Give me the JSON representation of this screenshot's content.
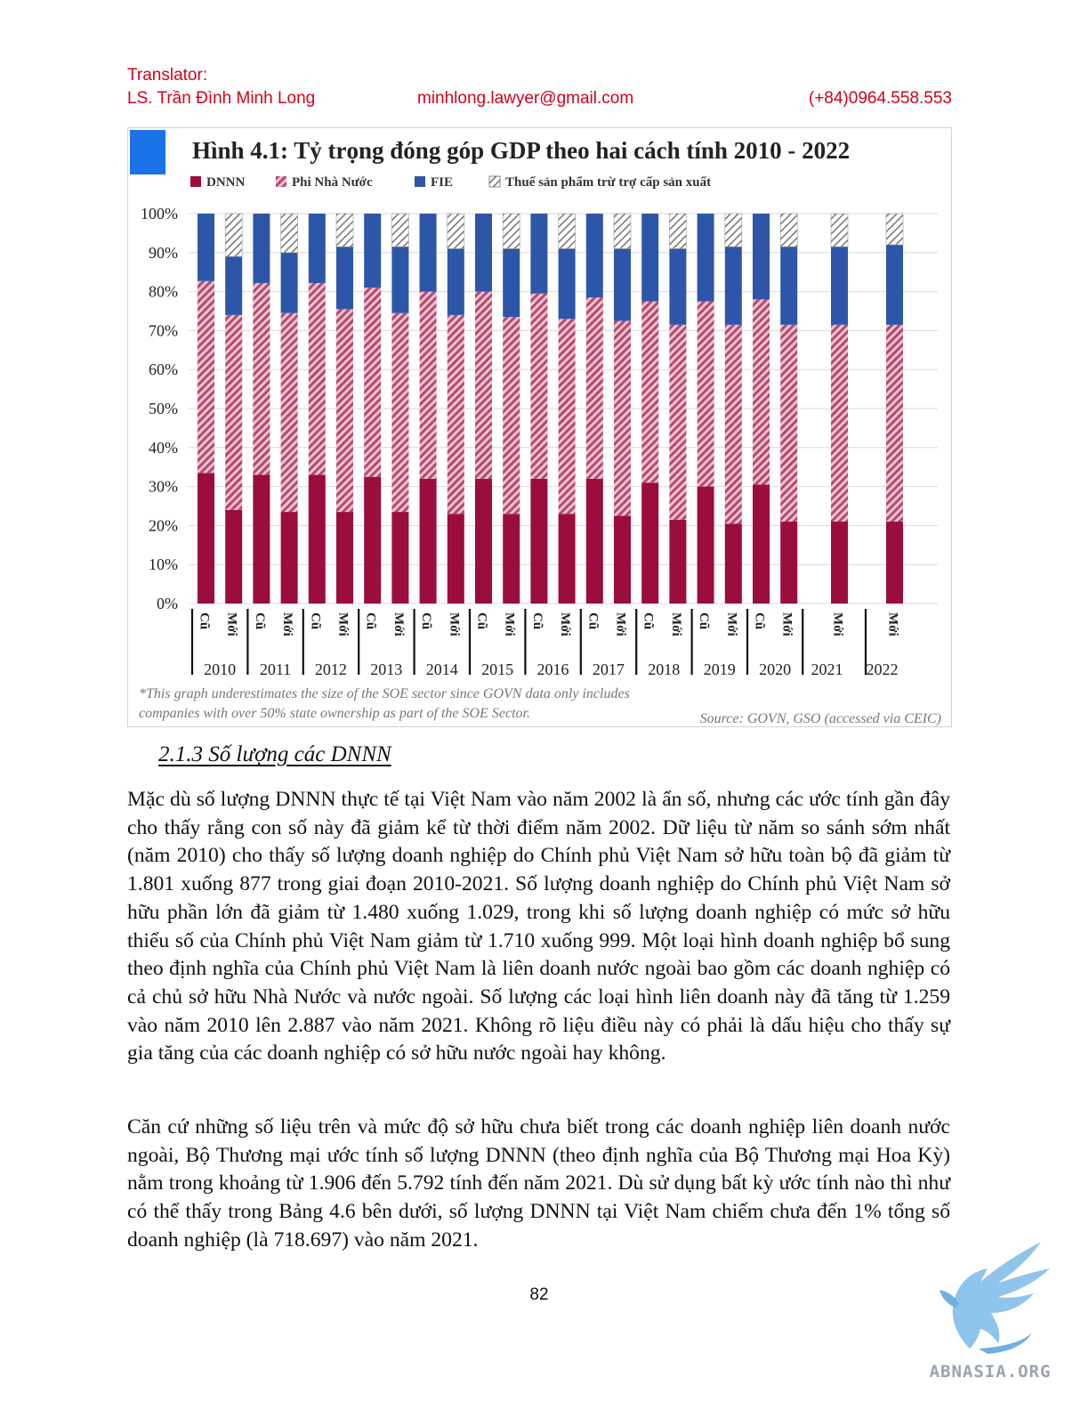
{
  "header": {
    "translator_label": "Translator:",
    "translator_name": "LS. Trần Đình Minh Long",
    "email": "minhlong.lawyer@gmail.com",
    "phone": "(+84)0964.558.553"
  },
  "colors": {
    "header_text": "#d0021b",
    "dnnn": "#9b0d3a",
    "phi_nha_nuoc": "#b8486e",
    "fie": "#2d56a8",
    "thue": "#7a7a7a",
    "title_square": "#1a73e8"
  },
  "chart_data": {
    "type": "bar",
    "stacked": true,
    "title": "Hình 4.1: Tỷ trọng đóng góp GDP theo hai cách tính 2010 - 2022",
    "legend": [
      "DNNN",
      "Phi Nhà Nước",
      "FIE",
      "Thuế sản phẩm trừ trợ cấp sản xuất"
    ],
    "legend_placement": "top",
    "y_ticks": [
      "100%",
      "90%",
      "80%",
      "70%",
      "60%",
      "50%",
      "40%",
      "30%",
      "20%",
      "10%",
      "0%"
    ],
    "ylim": [
      0,
      100
    ],
    "grid": true,
    "categories": [
      "2010",
      "2011",
      "2012",
      "2013",
      "2014",
      "2015",
      "2016",
      "2017",
      "2018",
      "2019",
      "2020",
      "2021",
      "2022"
    ],
    "bars": [
      {
        "year": "2010",
        "type": "Cũ",
        "dnnn": 33.5,
        "phi": 49.2,
        "fie": 17.3,
        "thue": 0
      },
      {
        "year": "2010",
        "type": "Mới",
        "dnnn": 24,
        "phi": 50,
        "fie": 15,
        "thue": 11
      },
      {
        "year": "2011",
        "type": "Cũ",
        "dnnn": 33,
        "phi": 49.2,
        "fie": 17.8,
        "thue": 0
      },
      {
        "year": "2011",
        "type": "Mới",
        "dnnn": 23.5,
        "phi": 51,
        "fie": 15.5,
        "thue": 10
      },
      {
        "year": "2012",
        "type": "Cũ",
        "dnnn": 33,
        "phi": 49.2,
        "fie": 17.8,
        "thue": 0
      },
      {
        "year": "2012",
        "type": "Mới",
        "dnnn": 23.5,
        "phi": 52,
        "fie": 16,
        "thue": 8.5
      },
      {
        "year": "2013",
        "type": "Cũ",
        "dnnn": 32.5,
        "phi": 48.5,
        "fie": 19,
        "thue": 0
      },
      {
        "year": "2013",
        "type": "Mới",
        "dnnn": 23.5,
        "phi": 51,
        "fie": 17,
        "thue": 8.5
      },
      {
        "year": "2014",
        "type": "Cũ",
        "dnnn": 32,
        "phi": 48,
        "fie": 20,
        "thue": 0
      },
      {
        "year": "2014",
        "type": "Mới",
        "dnnn": 23,
        "phi": 51,
        "fie": 17,
        "thue": 9
      },
      {
        "year": "2015",
        "type": "Cũ",
        "dnnn": 32,
        "phi": 48,
        "fie": 20,
        "thue": 0
      },
      {
        "year": "2015",
        "type": "Mới",
        "dnnn": 23,
        "phi": 50.5,
        "fie": 17.5,
        "thue": 9
      },
      {
        "year": "2016",
        "type": "Cũ",
        "dnnn": 32,
        "phi": 47.5,
        "fie": 20.5,
        "thue": 0
      },
      {
        "year": "2016",
        "type": "Mới",
        "dnnn": 23,
        "phi": 50,
        "fie": 18,
        "thue": 9
      },
      {
        "year": "2017",
        "type": "Cũ",
        "dnnn": 32,
        "phi": 46.5,
        "fie": 21.5,
        "thue": 0
      },
      {
        "year": "2017",
        "type": "Mới",
        "dnnn": 22.5,
        "phi": 50,
        "fie": 18.5,
        "thue": 9
      },
      {
        "year": "2018",
        "type": "Cũ",
        "dnnn": 31,
        "phi": 46.5,
        "fie": 22.5,
        "thue": 0
      },
      {
        "year": "2018",
        "type": "Mới",
        "dnnn": 21.5,
        "phi": 50,
        "fie": 19.5,
        "thue": 9
      },
      {
        "year": "2019",
        "type": "Cũ",
        "dnnn": 30,
        "phi": 47.5,
        "fie": 22.5,
        "thue": 0
      },
      {
        "year": "2019",
        "type": "Mới",
        "dnnn": 20.5,
        "phi": 51,
        "fie": 20,
        "thue": 8.5
      },
      {
        "year": "2020",
        "type": "Cũ",
        "dnnn": 30.5,
        "phi": 47.5,
        "fie": 22,
        "thue": 0
      },
      {
        "year": "2020",
        "type": "Mới",
        "dnnn": 21,
        "phi": 50.5,
        "fie": 20,
        "thue": 8.5
      },
      {
        "year": "2021",
        "type": "Mới",
        "dnnn": 21,
        "phi": 50.5,
        "fie": 20,
        "thue": 8.5
      },
      {
        "year": "2022",
        "type": "Mới",
        "dnnn": 21,
        "phi": 50.5,
        "fie": 20.5,
        "thue": 8
      }
    ],
    "footnote_line1": "*This graph underestimates the size of the SOE sector since GOVN data only includes",
    "footnote_line2": "companies with over 50% state ownership as part of the SOE Sector.",
    "source": "Source: GOVN, GSO (accessed via CEIC)"
  },
  "section_heading": "2.1.3 Số lượng các DNNN",
  "paragraph1": "Mặc dù số lượng DNNN thực tế tại Việt Nam vào năm 2002 là ẩn số, nhưng các ước tính gần đây cho thấy rằng con số này đã giảm kể từ thời điểm năm 2002. Dữ liệu từ năm so sánh sớm nhất (năm 2010) cho thấy số lượng doanh nghiệp do Chính phủ Việt Nam sở hữu toàn bộ đã giảm từ 1.801 xuống 877 trong giai đoạn 2010-2021. Số lượng doanh nghiệp do Chính phủ Việt Nam sở hữu phần lớn đã giảm từ 1.480 xuống 1.029, trong khi số lượng doanh nghiệp có mức sở hữu thiểu số của Chính phủ Việt Nam giảm từ 1.710 xuống 999. Một loại hình doanh nghiệp bổ sung theo định nghĩa của Chính phủ Việt Nam là liên doanh nước ngoài bao gồm các doanh nghiệp có cả chủ sở hữu Nhà Nước và nước ngoài. Số lượng các loại hình liên doanh này đã tăng từ 1.259 vào năm 2010 lên 2.887 vào năm 2021. Không rõ liệu điều này có phải là dấu hiệu cho thấy sự gia tăng của các doanh nghiệp có sở hữu nước ngoài hay không.",
  "paragraph2": "Căn cứ những số liệu trên và mức độ sở hữu chưa biết trong các doanh nghiệp liên doanh nước ngoài, Bộ Thương mại ước tính số lượng DNNN (theo định nghĩa của Bộ Thương mại Hoa Kỳ) nằm trong khoảng từ 1.906 đến 5.792 tính đến năm 2021. Dù sử dụng bất kỳ ước tính nào thì như có thể thấy trong Bảng 4.6 bên dưới, số lượng DNNN tại Việt Nam chiếm chưa đến 1% tổng số doanh nghiệp (là 718.697) vào năm 2021.",
  "page_number": "82",
  "logo_text": "ABNASIA.ORG"
}
